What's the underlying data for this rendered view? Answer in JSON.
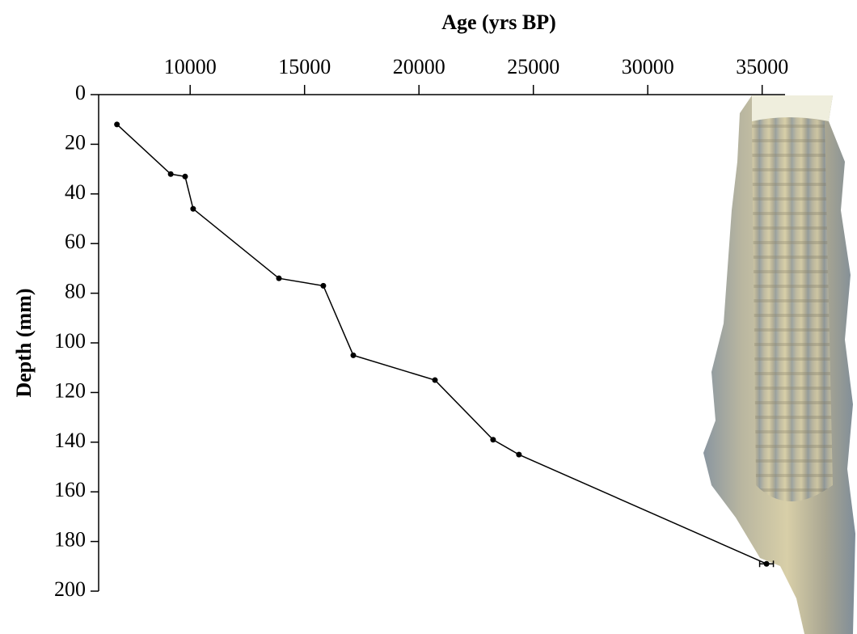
{
  "chart_data": {
    "type": "line",
    "title": "Age (yrs BP)",
    "y_label": "Depth (mm)",
    "series": [
      {
        "name": null,
        "color": "#000000",
        "x": [
          6800,
          9150,
          9780,
          10130,
          13880,
          15820,
          17130,
          20700,
          23240,
          24370,
          35190
        ],
        "values": [
          12,
          32,
          33,
          46,
          74,
          77,
          105,
          115,
          139,
          145,
          189
        ],
        "errors": [
          null,
          null,
          null,
          null,
          null,
          null,
          null,
          null,
          null,
          null,
          300
        ]
      }
    ],
    "xlim": [
      6000,
      36000
    ],
    "xticks": [
      10000,
      15000,
      20000,
      25000,
      30000,
      35000
    ],
    "ylim": [
      0,
      200
    ],
    "yticks": [
      0,
      20,
      40,
      60,
      80,
      100,
      120,
      140,
      160,
      180,
      200
    ],
    "x_axis_position": "top",
    "y_inverted": true
  }
}
